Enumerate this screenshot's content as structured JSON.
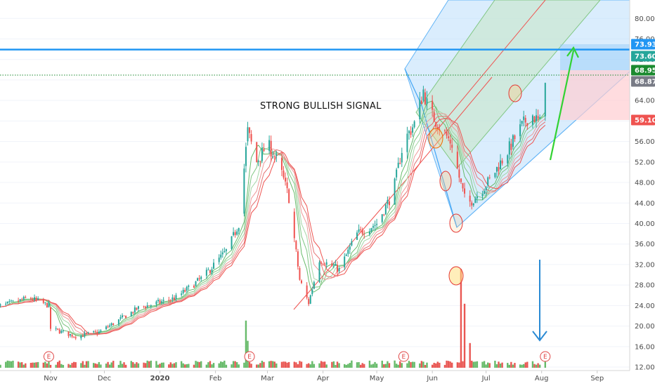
{
  "chart_data": {
    "type": "candlestick",
    "annotation": "STRONG BULLISH SIGNAL",
    "y_axis": {
      "range": [
        10.5,
        82.5
      ],
      "ticks": [
        "80.00",
        "76.00",
        "72.00",
        "68.00",
        "64.00",
        "60.00",
        "56.00",
        "52.00",
        "48.00",
        "44.00",
        "40.00",
        "36.00",
        "32.00",
        "28.00",
        "24.00",
        "20.00",
        "16.00",
        "12.00"
      ]
    },
    "x_axis": {
      "ticks": [
        "Nov",
        "Dec",
        "2020",
        "Feb",
        "Mar",
        "Apr",
        "May",
        "Jun",
        "Jul",
        "Aug",
        "Sep"
      ]
    },
    "price_badges": [
      {
        "label": "73.93",
        "value": 73.93,
        "color": "#2196f3"
      },
      {
        "label": "73.60",
        "value": 73.6,
        "color": "#26a69a"
      },
      {
        "label": "68.95",
        "value": 68.95,
        "color": "#1b8a2f"
      },
      {
        "label": "68.87",
        "value": 68.87,
        "color": "#787b86"
      },
      {
        "label": "59.10",
        "value": 59.1,
        "color": "#ef5350"
      }
    ],
    "horizontal_lines": [
      {
        "value": 73.93,
        "color": "#2196f3",
        "style": "solid"
      },
      {
        "value": 68.95,
        "color": "#1b8a2f",
        "style": "dotted"
      }
    ],
    "price_keypoints": [
      {
        "date": "2019-10-01",
        "price": 23.5
      },
      {
        "date": "2019-10-20",
        "price": 25.5
      },
      {
        "date": "2019-10-31",
        "price": 24.0
      },
      {
        "date": "2019-11-01",
        "price": 19.5
      },
      {
        "date": "2019-11-15",
        "price": 18.0
      },
      {
        "date": "2019-11-28",
        "price": 18.8
      },
      {
        "date": "2019-12-20",
        "price": 23.5
      },
      {
        "date": "2020-01-10",
        "price": 25.5
      },
      {
        "date": "2020-01-25",
        "price": 29.5
      },
      {
        "date": "2020-02-08",
        "price": 35.0
      },
      {
        "date": "2020-02-14",
        "price": 40.0
      },
      {
        "date": "2020-02-19",
        "price": 58.0
      },
      {
        "date": "2020-02-24",
        "price": 52.0
      },
      {
        "date": "2020-03-01",
        "price": 55.5
      },
      {
        "date": "2020-03-07",
        "price": 52.0
      },
      {
        "date": "2020-03-13",
        "price": 45.0
      },
      {
        "date": "2020-03-19",
        "price": 29.0
      },
      {
        "date": "2020-03-24",
        "price": 24.5
      },
      {
        "date": "2020-03-30",
        "price": 33.0
      },
      {
        "date": "2020-04-10",
        "price": 31.0
      },
      {
        "date": "2020-04-20",
        "price": 38.0
      },
      {
        "date": "2020-05-01",
        "price": 40.0
      },
      {
        "date": "2020-05-10",
        "price": 46.0
      },
      {
        "date": "2020-05-16",
        "price": 56.0
      },
      {
        "date": "2020-05-23",
        "price": 60.0
      },
      {
        "date": "2020-05-27",
        "price": 66.0
      },
      {
        "date": "2020-05-30",
        "price": 62.0
      },
      {
        "date": "2020-06-05",
        "price": 59.0
      },
      {
        "date": "2020-06-12",
        "price": 55.5
      },
      {
        "date": "2020-06-16",
        "price": 49.0
      },
      {
        "date": "2020-06-20",
        "price": 43.5
      },
      {
        "date": "2020-06-26",
        "price": 45.5
      },
      {
        "date": "2020-07-03",
        "price": 48.5
      },
      {
        "date": "2020-07-12",
        "price": 53.5
      },
      {
        "date": "2020-07-20",
        "price": 58.5
      },
      {
        "date": "2020-07-26",
        "price": 61.5
      },
      {
        "date": "2020-07-31",
        "price": 59.5
      },
      {
        "date": "2020-08-02",
        "price": 61.0
      },
      {
        "date": "2020-08-03",
        "price": 68.87
      }
    ],
    "volume_spikes": [
      {
        "date": "2020-02-18",
        "height": 0.42
      },
      {
        "date": "2020-02-19",
        "height": 0.24
      },
      {
        "date": "2020-06-17",
        "height": 0.88
      },
      {
        "date": "2020-06-19",
        "height": 0.57
      },
      {
        "date": "2020-06-22",
        "height": 0.22
      },
      {
        "date": "2020-05-24",
        "height": 0.14
      },
      {
        "date": "2019-10-31",
        "height": 0.12
      }
    ],
    "earnings_markers": [
      {
        "label": "E",
        "date": "2019-10-31"
      },
      {
        "label": "E",
        "date": "2020-02-20"
      },
      {
        "label": "E",
        "date": "2020-05-16"
      },
      {
        "label": "E",
        "date": "2020-08-03"
      }
    ],
    "colors": {
      "up": "#26a69a",
      "down": "#ef5350",
      "channel_blue": "#90caf9",
      "channel_green": "#a5d6a7",
      "ribbon_green": "#4caf50",
      "ribbon_red": "#e57373",
      "arrow_green": "#32d232",
      "arrow_blue": "#2a8ad4"
    }
  }
}
